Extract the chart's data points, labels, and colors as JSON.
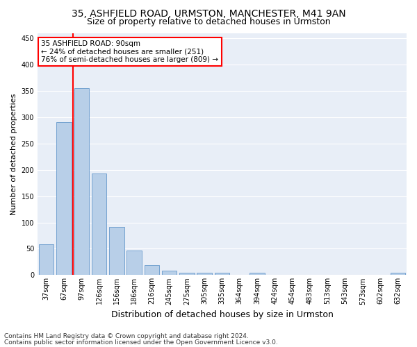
{
  "title1": "35, ASHFIELD ROAD, URMSTON, MANCHESTER, M41 9AN",
  "title2": "Size of property relative to detached houses in Urmston",
  "xlabel": "Distribution of detached houses by size in Urmston",
  "ylabel": "Number of detached properties",
  "categories": [
    "37sqm",
    "67sqm",
    "97sqm",
    "126sqm",
    "156sqm",
    "186sqm",
    "216sqm",
    "245sqm",
    "275sqm",
    "305sqm",
    "335sqm",
    "364sqm",
    "394sqm",
    "424sqm",
    "454sqm",
    "483sqm",
    "513sqm",
    "543sqm",
    "573sqm",
    "602sqm",
    "632sqm"
  ],
  "values": [
    59,
    290,
    355,
    193,
    91,
    47,
    19,
    9,
    5,
    5,
    5,
    0,
    5,
    0,
    0,
    0,
    0,
    0,
    0,
    0,
    5
  ],
  "bar_color": "#b8cfe8",
  "bar_edge_color": "#6699cc",
  "vline_color": "red",
  "vline_x": 1.5,
  "annotation_text": "35 ASHFIELD ROAD: 90sqm\n← 24% of detached houses are smaller (251)\n76% of semi-detached houses are larger (809) →",
  "annotation_box_color": "white",
  "annotation_box_edge_color": "red",
  "ylim": [
    0,
    460
  ],
  "yticks": [
    0,
    50,
    100,
    150,
    200,
    250,
    300,
    350,
    400,
    450
  ],
  "background_color": "#e8eef7",
  "grid_color": "white",
  "footer1": "Contains HM Land Registry data © Crown copyright and database right 2024.",
  "footer2": "Contains public sector information licensed under the Open Government Licence v3.0.",
  "title1_fontsize": 10,
  "title2_fontsize": 9,
  "xlabel_fontsize": 9,
  "ylabel_fontsize": 8,
  "tick_fontsize": 7,
  "annotation_fontsize": 7.5,
  "footer_fontsize": 6.5
}
